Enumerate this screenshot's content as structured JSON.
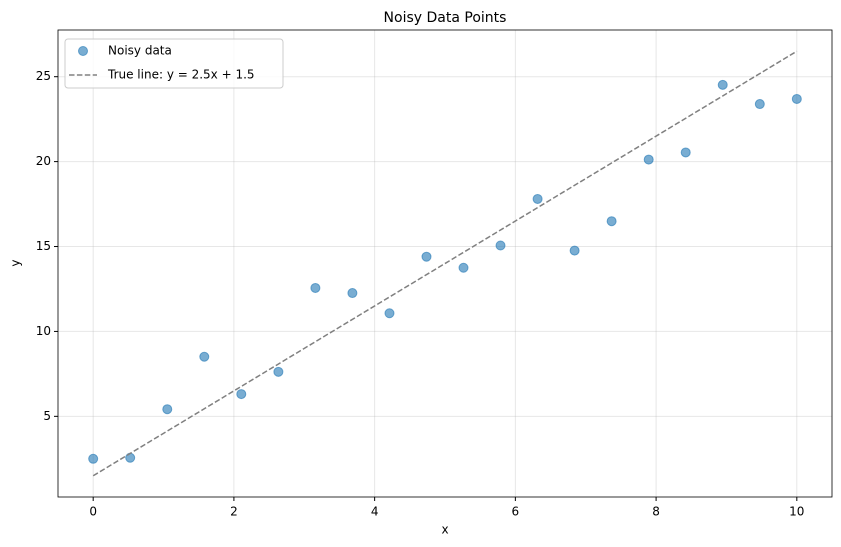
{
  "chart_data": {
    "type": "scatter",
    "title": "Noisy Data Points",
    "x_label": "x",
    "y_label": "y",
    "xlim": [
      -0.5,
      10.5
    ],
    "ylim": [
      0.25,
      27.75
    ],
    "xticks": [
      0,
      2,
      4,
      6,
      8,
      10
    ],
    "yticks": [
      5,
      10,
      15,
      20,
      25
    ],
    "grid": true,
    "legend": "upper left",
    "series": [
      {
        "name": "Noisy data",
        "type": "scatter",
        "color": "#1f77b4",
        "x": [
          0,
          0.526,
          1.053,
          1.579,
          2.105,
          2.632,
          3.158,
          3.684,
          4.211,
          4.737,
          5.263,
          5.789,
          6.316,
          6.842,
          7.368,
          7.895,
          8.421,
          8.947,
          9.474,
          10
        ],
        "values": [
          2.5,
          2.56,
          5.42,
          8.51,
          6.31,
          7.62,
          12.56,
          12.26,
          11.07,
          14.4,
          13.75,
          15.06,
          17.8,
          14.76,
          16.49,
          20.12,
          20.54,
          24.52,
          23.39,
          23.69
        ]
      },
      {
        "name": "True line: y = 2.5x + 1.5",
        "type": "line",
        "style": "dashed",
        "color": "#808080",
        "x": [
          0,
          10
        ],
        "values": [
          1.5,
          26.5
        ]
      }
    ]
  }
}
